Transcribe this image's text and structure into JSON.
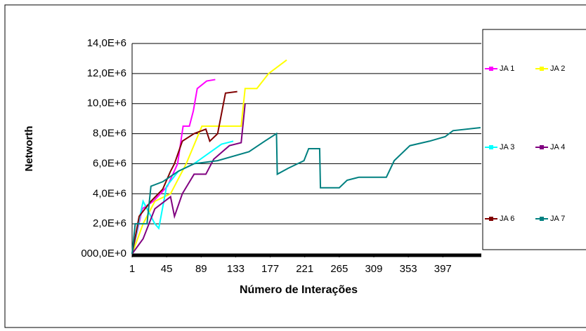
{
  "chart_data": {
    "type": "line",
    "xlabel": "Número de Interações",
    "ylabel": "Networth",
    "xlim": [
      1,
      446
    ],
    "xticks": [
      1,
      45,
      89,
      133,
      177,
      221,
      265,
      309,
      353,
      397
    ],
    "ylim": [
      0,
      14000000
    ],
    "yticks": [
      {
        "value": 0,
        "label": "000,0E+0"
      },
      {
        "value": 2000000,
        "label": "2,0E+6"
      },
      {
        "value": 4000000,
        "label": "4,0E+6"
      },
      {
        "value": 6000000,
        "label": "6,0E+6"
      },
      {
        "value": 8000000,
        "label": "8,0E+6"
      },
      {
        "value": 10000000,
        "label": "10,0E+6"
      },
      {
        "value": 12000000,
        "label": "12,0E+6"
      },
      {
        "value": 14000000,
        "label": "14,0E+6"
      }
    ],
    "grid": true,
    "legend": "right",
    "series": [
      {
        "name": "JA 1",
        "color": "#ff00ff",
        "x": [
          1,
          14,
          28,
          46,
          59,
          66,
          74,
          79,
          84,
          96,
          107
        ],
        "values": [
          0,
          3000000,
          3500000,
          4500000,
          6000000,
          8500000,
          8500000,
          9500000,
          11000000,
          11500000,
          11600000
        ]
      },
      {
        "name": "JA 2",
        "color": "#ffff00",
        "x": [
          1,
          15,
          30,
          50,
          70,
          90,
          140,
          145,
          160,
          175,
          198
        ],
        "values": [
          0,
          2000000,
          3500000,
          4000000,
          6000000,
          8500000,
          8500000,
          11000000,
          11000000,
          12000000,
          12900000
        ]
      },
      {
        "name": "JA 3",
        "color": "#00ffff",
        "x": [
          1,
          15,
          30,
          35,
          45,
          60,
          80,
          115,
          130
        ],
        "values": [
          0,
          3500000,
          2000000,
          1700000,
          4500000,
          5500000,
          6000000,
          7300000,
          7500000
        ]
      },
      {
        "name": "JA 4",
        "color": "#800080",
        "x": [
          1,
          15,
          30,
          50,
          55,
          65,
          80,
          95,
          105,
          125,
          140,
          145
        ],
        "values": [
          0,
          1000000,
          3000000,
          3800000,
          2500000,
          4000000,
          5300000,
          5300000,
          6300000,
          7200000,
          7400000,
          10000000
        ]
      },
      {
        "name": "JA 6",
        "color": "#800000",
        "x": [
          1,
          10,
          25,
          40,
          50,
          55,
          65,
          80,
          95,
          100,
          110,
          120,
          135
        ],
        "values": [
          0,
          2500000,
          3500000,
          4300000,
          5500000,
          6000000,
          7500000,
          8000000,
          8300000,
          7500000,
          8000000,
          10700000,
          10800000
        ]
      },
      {
        "name": "JA 7",
        "color": "#008080",
        "x": [
          1,
          5,
          20,
          25,
          40,
          60,
          80,
          110,
          150,
          170,
          185,
          186,
          200,
          220,
          226,
          240,
          241,
          265,
          275,
          290,
          325,
          335,
          355,
          380,
          400,
          410,
          445
        ],
        "values": [
          0,
          2000000,
          2000000,
          4500000,
          4800000,
          5500000,
          6000000,
          6200000,
          6800000,
          7500000,
          8000000,
          5300000,
          5700000,
          6200000,
          7000000,
          7000000,
          4400000,
          4400000,
          4900000,
          5100000,
          5100000,
          6200000,
          7200000,
          7500000,
          7800000,
          8200000,
          8400000
        ]
      }
    ]
  }
}
